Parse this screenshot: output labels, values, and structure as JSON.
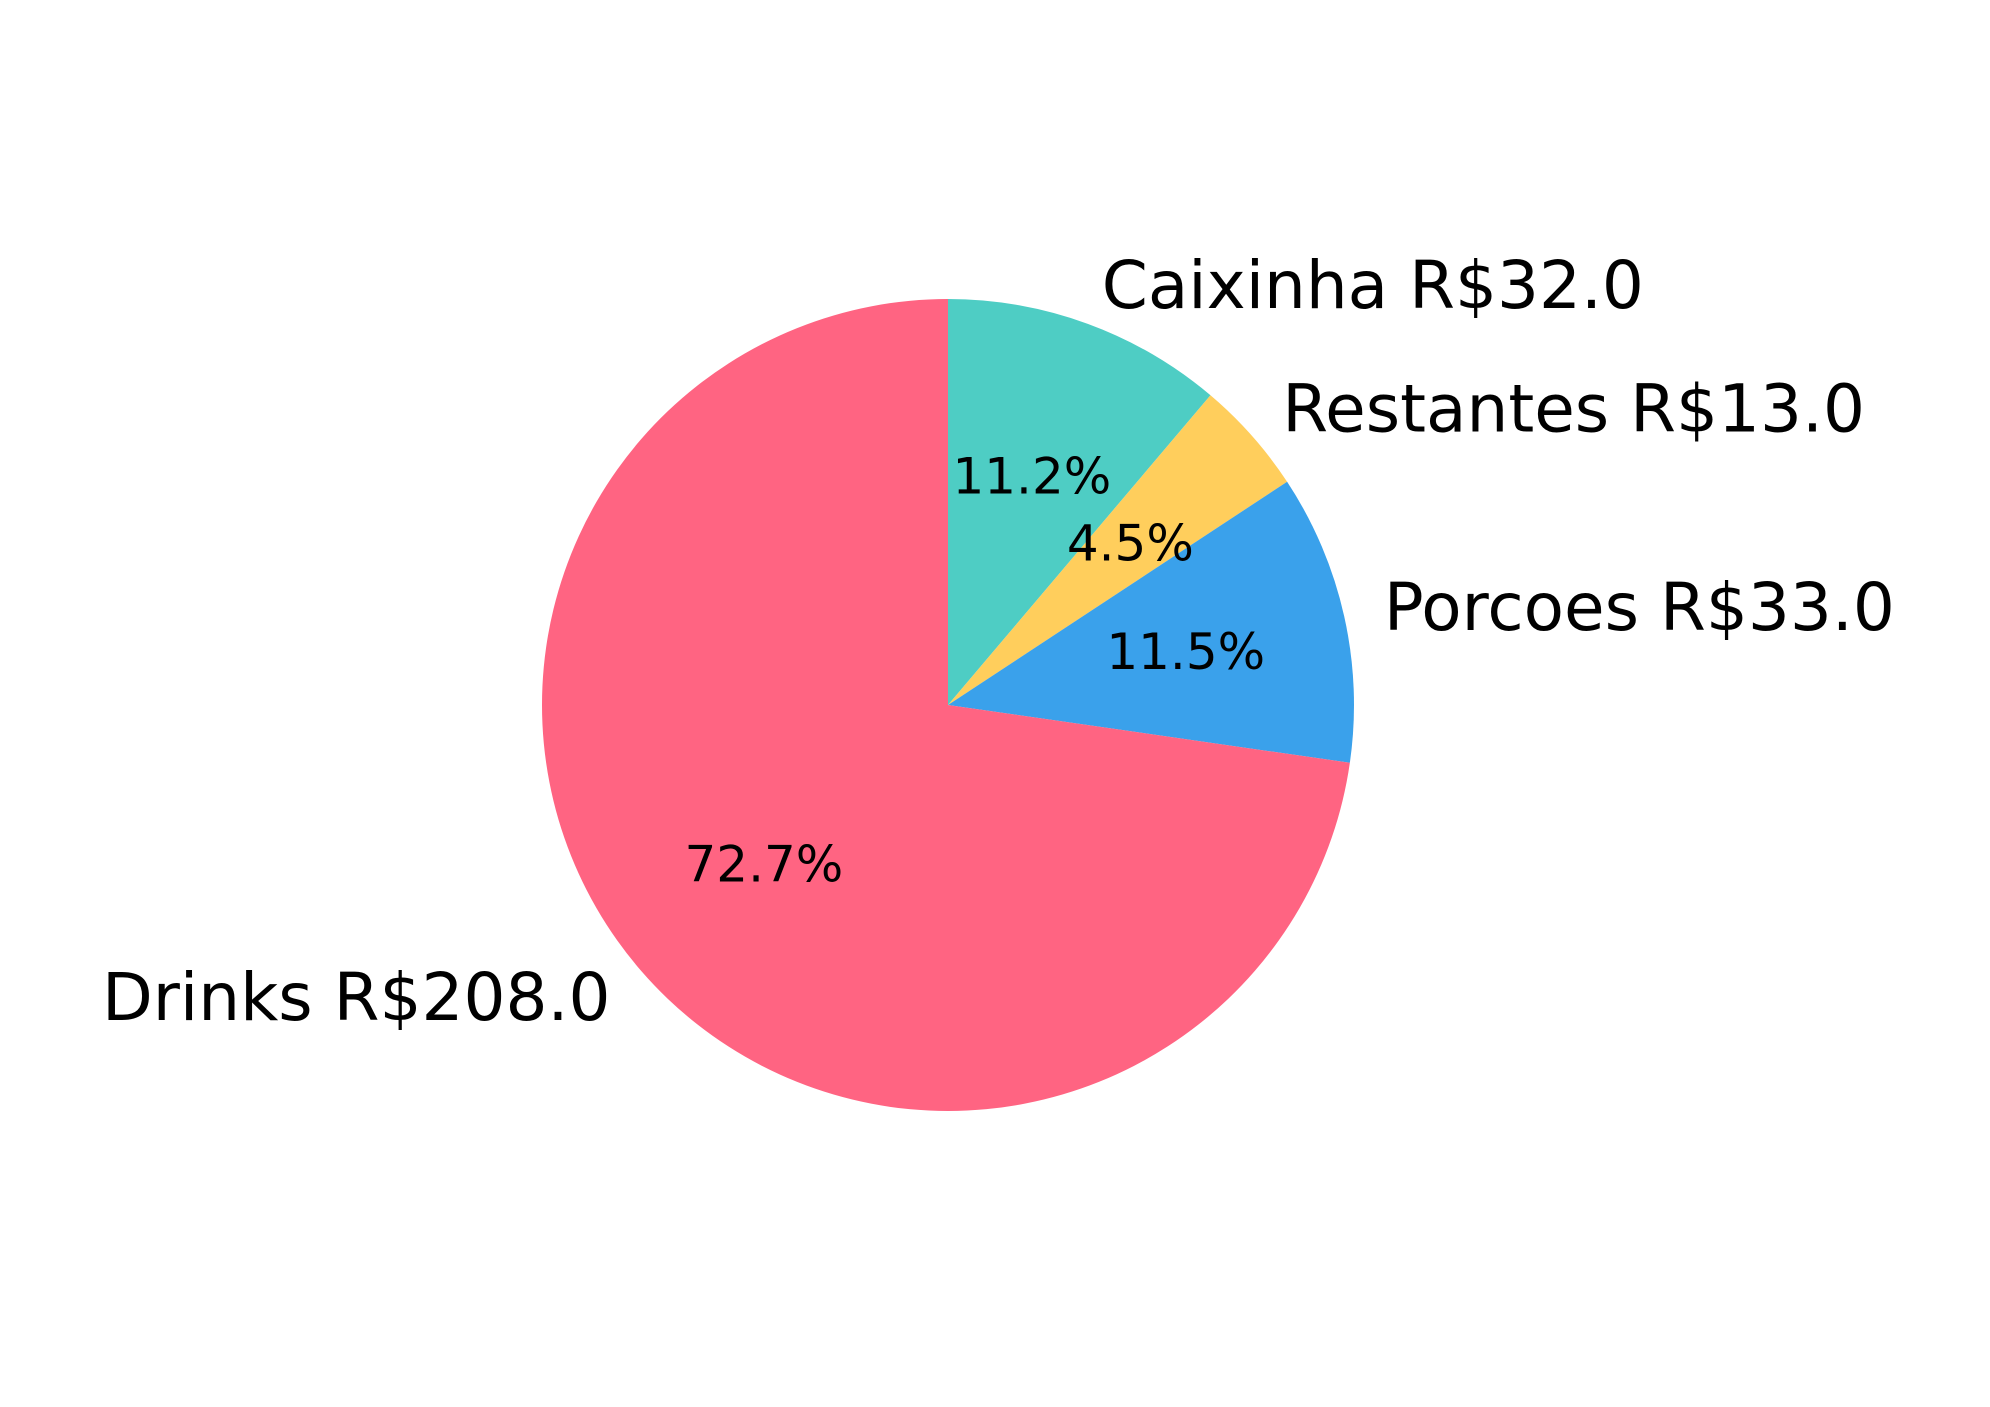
{
  "chart_data": {
    "type": "pie",
    "title": "",
    "start_angle_deg": 90,
    "direction": "clockwise",
    "slices": [
      {
        "label": "Caixinha R$32.0",
        "value": 32.0,
        "pct_label": "11.2%",
        "color": "#4ECDC4"
      },
      {
        "label": "Restantes R$13.0",
        "value": 13.0,
        "pct_label": "4.5%",
        "color": "#FFCE5C"
      },
      {
        "label": "Porcoes R$33.0",
        "value": 33.0,
        "pct_label": "11.5%",
        "color": "#3AA1EB"
      },
      {
        "label": "Drinks R$208.0",
        "value": 208.0,
        "pct_label": "72.7%",
        "color": "#FF6482"
      }
    ]
  }
}
